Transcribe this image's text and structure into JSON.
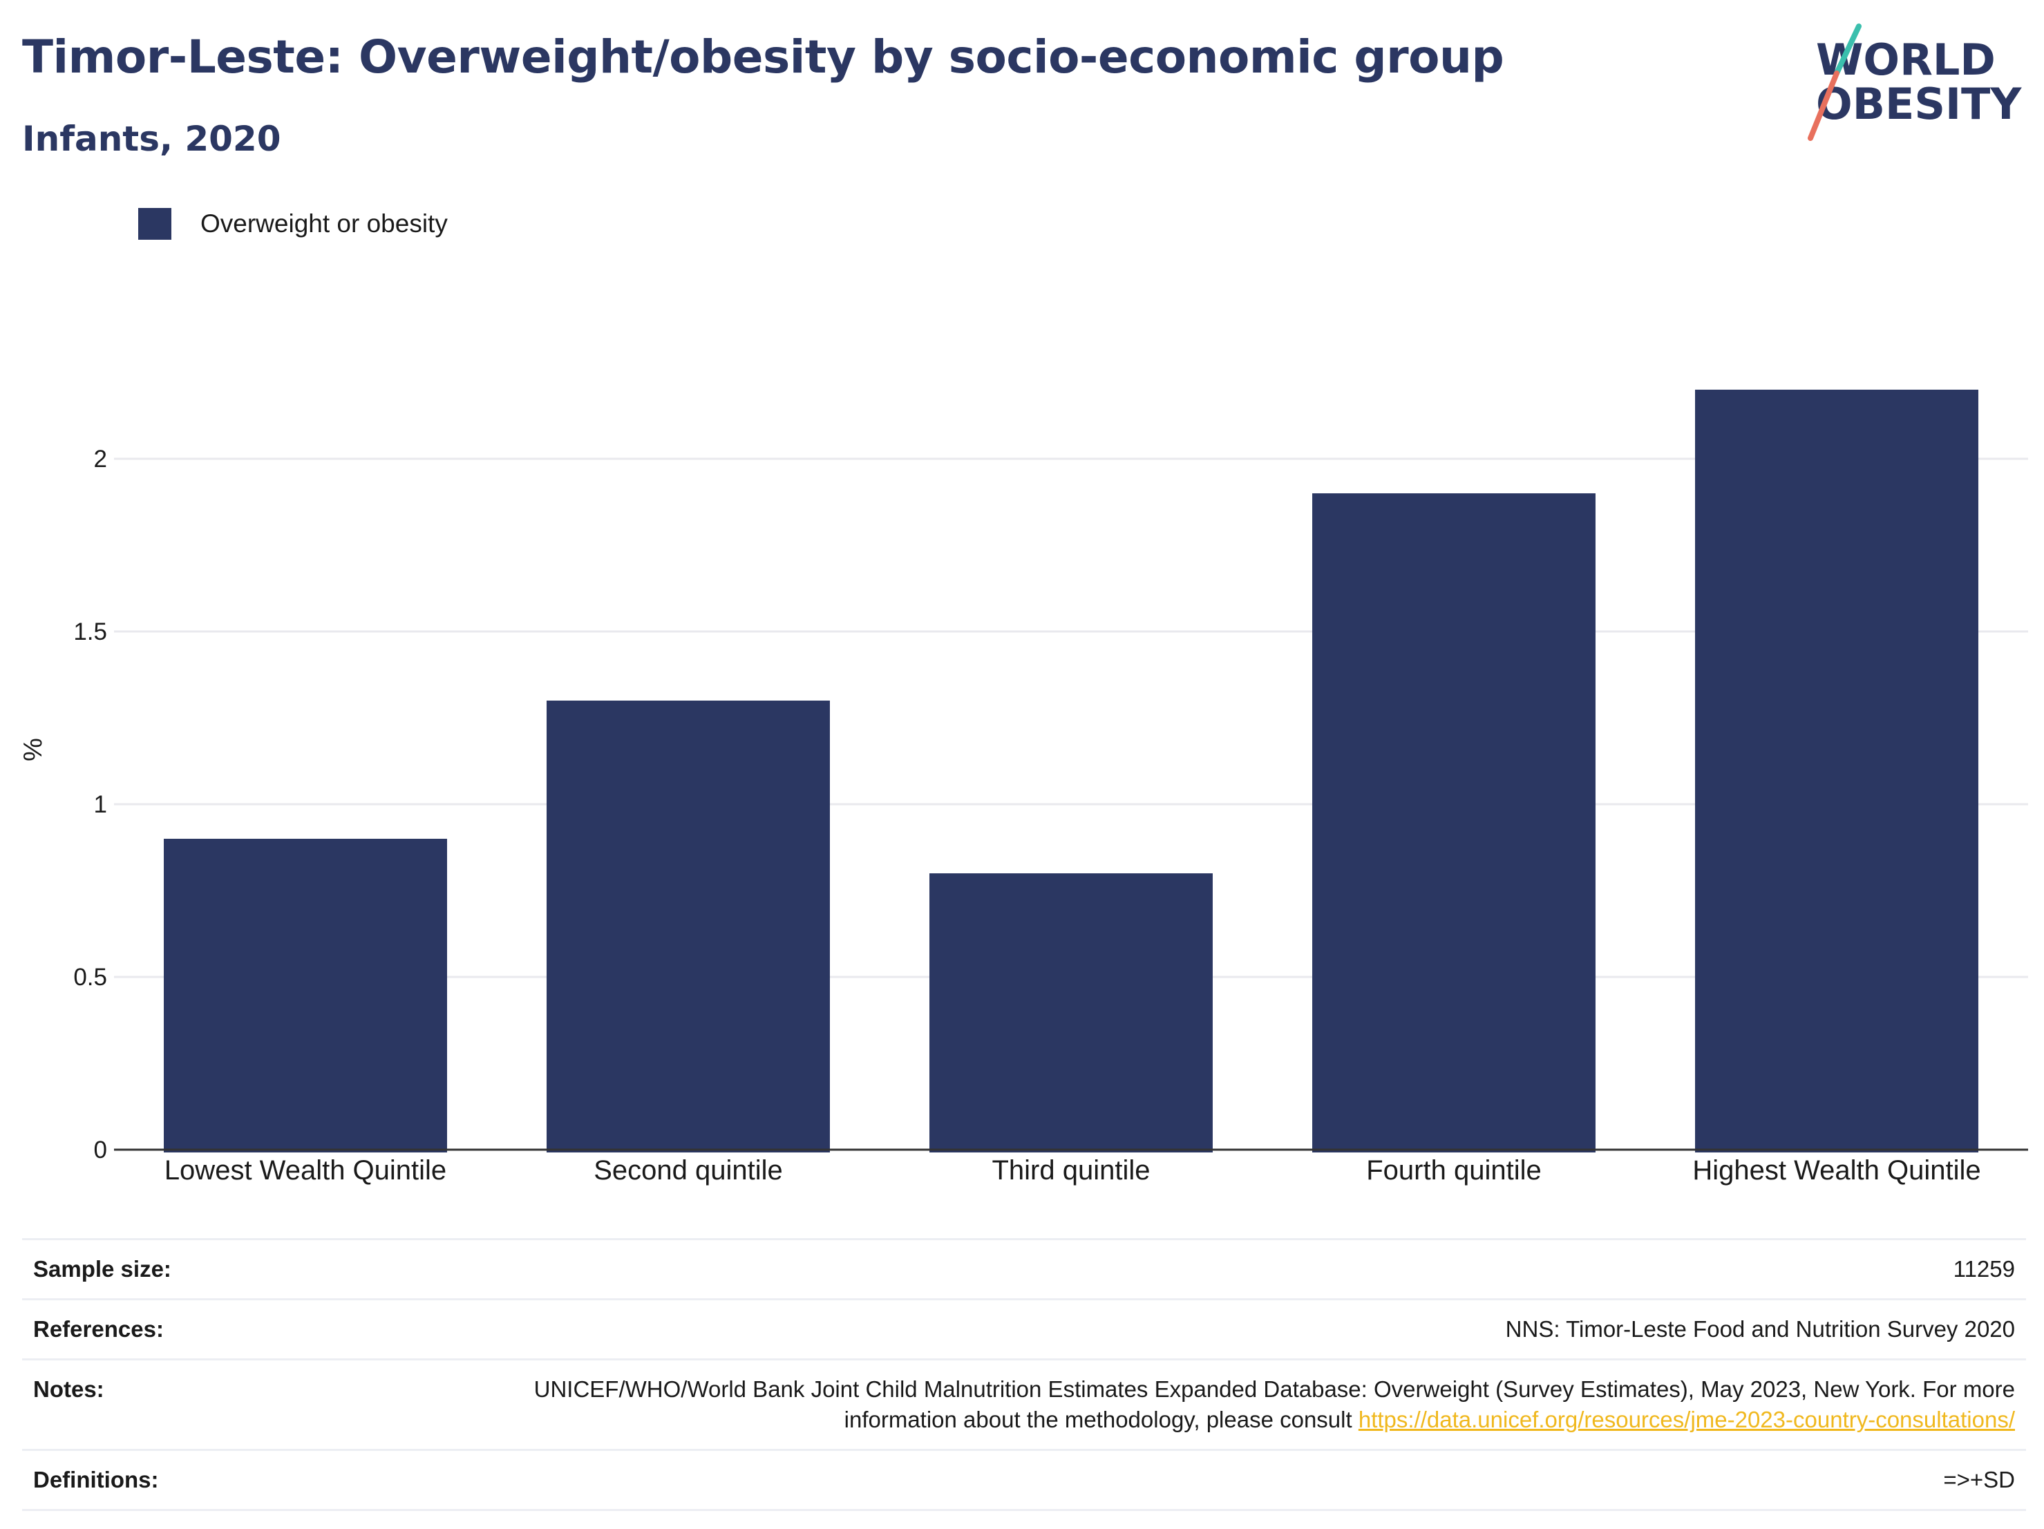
{
  "header": {
    "title": "Timor-Leste: Overweight/obesity by socio-economic group",
    "subtitle": "Infants, 2020"
  },
  "logo": {
    "line1": "WORLD",
    "line2": "OBESITY"
  },
  "colors": {
    "bar": "#2b3762",
    "title": "#2b3762",
    "link": "#f0b81e",
    "logo_teal": "#3bbfad",
    "logo_coral": "#e8705d"
  },
  "chart_data": {
    "type": "bar",
    "categories": [
      "Lowest Wealth Quintile",
      "Second quintile",
      "Third quintile",
      "Fourth quintile",
      "Highest Wealth Quintile"
    ],
    "series": [
      {
        "name": "Overweight or obesity",
        "values": [
          0.9,
          1.3,
          0.8,
          1.9,
          2.2
        ]
      }
    ],
    "ylabel": "%",
    "yticks": [
      0,
      0.5,
      1,
      1.5,
      2
    ],
    "ytick_labels": [
      "0",
      "0.5",
      "1",
      "1.5",
      "2"
    ],
    "ylim": [
      0,
      2.4
    ],
    "grid": true,
    "legend": "top-left"
  },
  "info": {
    "sample_size": {
      "label": "Sample size:",
      "value": "11259"
    },
    "references": {
      "label": "References:",
      "value": "NNS: Timor-Leste Food and Nutrition Survey 2020"
    },
    "notes": {
      "label": "Notes:",
      "text": "UNICEF/WHO/World Bank Joint Child Malnutrition Estimates Expanded Database: Overweight (Survey Estimates), May 2023, New York. For more information about the methodology, please consult ",
      "link": "https://data.unicef.org/resources/jme-2023-country-consultations/"
    },
    "definitions": {
      "label": "Definitions:",
      "value": "=>+SD"
    }
  }
}
